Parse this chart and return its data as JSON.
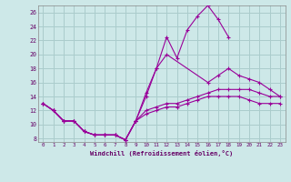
{
  "xlabel": "Windchill (Refroidissement éolien,°C)",
  "background_color": "#cde8e8",
  "grid_color": "#aacccc",
  "line_color": "#990099",
  "xlim": [
    -0.5,
    23.5
  ],
  "ylim": [
    7.5,
    27
  ],
  "yticks": [
    8,
    10,
    12,
    14,
    16,
    18,
    20,
    22,
    24,
    26
  ],
  "xticks": [
    0,
    1,
    2,
    3,
    4,
    5,
    6,
    7,
    8,
    9,
    10,
    11,
    12,
    13,
    14,
    15,
    16,
    17,
    18,
    19,
    20,
    21,
    22,
    23
  ],
  "lines": [
    {
      "x": [
        0,
        1,
        2,
        3,
        4,
        5,
        6,
        7,
        8,
        9,
        10,
        11,
        12,
        13,
        14,
        15,
        16,
        17,
        18
      ],
      "y": [
        13,
        12,
        10.5,
        10.5,
        9,
        8.5,
        8.5,
        8.5,
        7.8,
        10.5,
        14.5,
        18,
        22.5,
        19.5,
        23.5,
        25.5,
        27,
        25,
        22.5
      ]
    },
    {
      "x": [
        0,
        1,
        2,
        3,
        4,
        5,
        6,
        7,
        8,
        9,
        10,
        11,
        12,
        16,
        17,
        18,
        19,
        20,
        21,
        22,
        23
      ],
      "y": [
        13,
        12,
        10.5,
        10.5,
        9,
        8.5,
        8.5,
        8.5,
        7.8,
        10.5,
        14,
        18,
        20,
        16,
        17,
        18,
        17,
        16.5,
        16,
        15,
        14
      ]
    },
    {
      "x": [
        0,
        1,
        2,
        3,
        4,
        5,
        6,
        7,
        8,
        9,
        10,
        11,
        12,
        13,
        14,
        15,
        16,
        17,
        18,
        19,
        20,
        21,
        22,
        23
      ],
      "y": [
        13,
        12,
        10.5,
        10.5,
        9,
        8.5,
        8.5,
        8.5,
        7.8,
        10.5,
        12,
        12.5,
        13,
        13,
        13.5,
        14,
        14.5,
        15,
        15,
        15,
        15,
        14.5,
        14,
        14
      ]
    },
    {
      "x": [
        0,
        1,
        2,
        3,
        4,
        5,
        6,
        7,
        8,
        9,
        10,
        11,
        12,
        13,
        14,
        15,
        16,
        17,
        18,
        19,
        20,
        21,
        22,
        23
      ],
      "y": [
        13,
        12,
        10.5,
        10.5,
        9,
        8.5,
        8.5,
        8.5,
        7.8,
        10.5,
        11.5,
        12,
        12.5,
        12.5,
        13,
        13.5,
        14,
        14,
        14,
        14,
        13.5,
        13,
        13,
        13
      ]
    }
  ]
}
